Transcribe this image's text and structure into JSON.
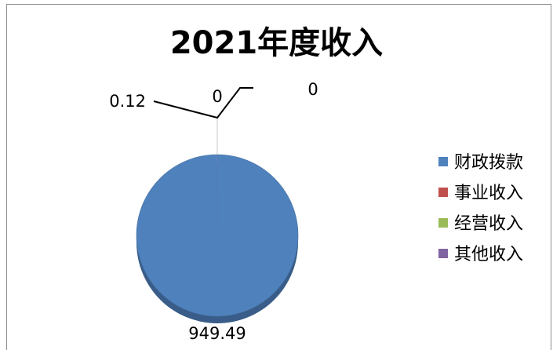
{
  "chart_data": {
    "type": "pie",
    "title": "2021年度收入",
    "legend_position": "right",
    "series": [
      {
        "name": "财政拨款",
        "value": 949.49,
        "label": "949.49",
        "color": "#4F81BD"
      },
      {
        "name": "事业收入",
        "value": 0.12,
        "label": "0.12",
        "color": "#C0504D"
      },
      {
        "name": "经营收入",
        "value": 0,
        "label": "0",
        "color": "#9BBB59"
      },
      {
        "name": "其他收入",
        "value": 0,
        "label": "0",
        "color": "#8064A2"
      }
    ]
  }
}
